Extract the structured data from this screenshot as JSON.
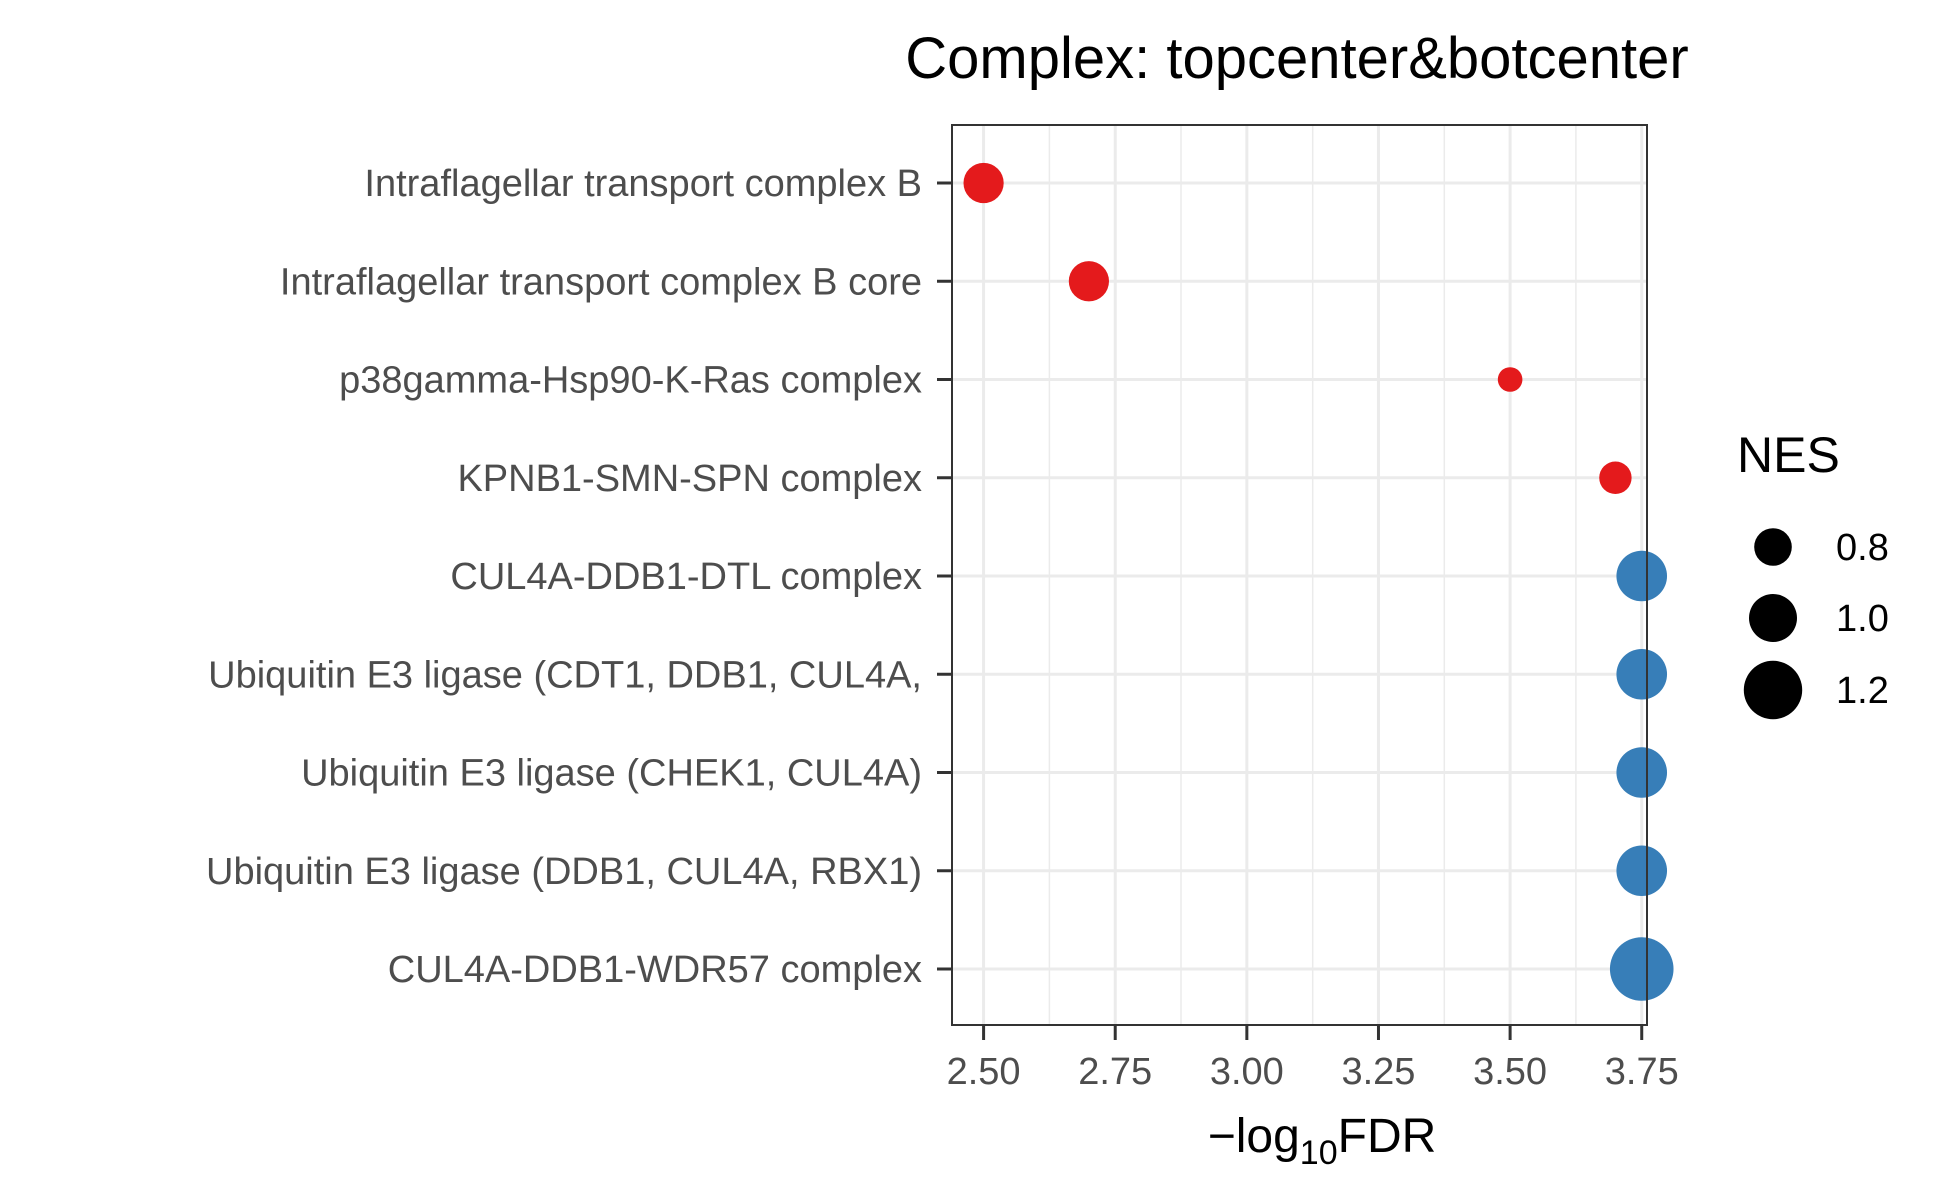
{
  "chart_data": {
    "type": "scatter",
    "title": "Complex: topcenter&botcenter",
    "xlabel_prefix": "−log",
    "xlabel_sub": "10",
    "xlabel_suffix": "FDR",
    "ylabel": "",
    "xlim": [
      2.44,
      3.76
    ],
    "x_ticks": [
      2.5,
      2.75,
      3.0,
      3.25,
      3.5,
      3.75
    ],
    "x_tick_labels": [
      "2.50",
      "2.75",
      "3.00",
      "3.25",
      "3.50",
      "3.75"
    ],
    "grid": true,
    "categories": [
      "Intraflagellar transport complex B",
      "Intraflagellar transport complex B core ",
      "p38gamma-Hsp90-K-Ras complex",
      "KPNB1-SMN-SPN complex",
      "CUL4A-DDB1-DTL complex",
      "Ubiquitin E3 ligase (CDT1, DDB1, CUL4A, ",
      "Ubiquitin E3 ligase (CHEK1, CUL4A)",
      "Ubiquitin E3 ligase (DDB1, CUL4A, RBX1)",
      "CUL4A-DDB1-WDR57 complex"
    ],
    "points": [
      {
        "x": 2.5,
        "nes": 0.85,
        "color": "#e41a1c"
      },
      {
        "x": 2.7,
        "nes": 0.85,
        "color": "#e41a1c"
      },
      {
        "x": 3.5,
        "nes": 0.55,
        "color": "#e41a1c"
      },
      {
        "x": 3.7,
        "nes": 0.7,
        "color": "#e41a1c"
      },
      {
        "x": 3.75,
        "nes": 1.05,
        "color": "#377eb8"
      },
      {
        "x": 3.75,
        "nes": 1.05,
        "color": "#377eb8"
      },
      {
        "x": 3.75,
        "nes": 1.05,
        "color": "#377eb8"
      },
      {
        "x": 3.75,
        "nes": 1.05,
        "color": "#377eb8"
      },
      {
        "x": 3.75,
        "nes": 1.3,
        "color": "#377eb8"
      }
    ],
    "legend": {
      "title": "NES",
      "placement": "right",
      "entries": [
        {
          "label": "0.8",
          "value": 0.8
        },
        {
          "label": "1.0",
          "value": 1.0
        },
        {
          "label": "1.2",
          "value": 1.2
        }
      ]
    }
  }
}
